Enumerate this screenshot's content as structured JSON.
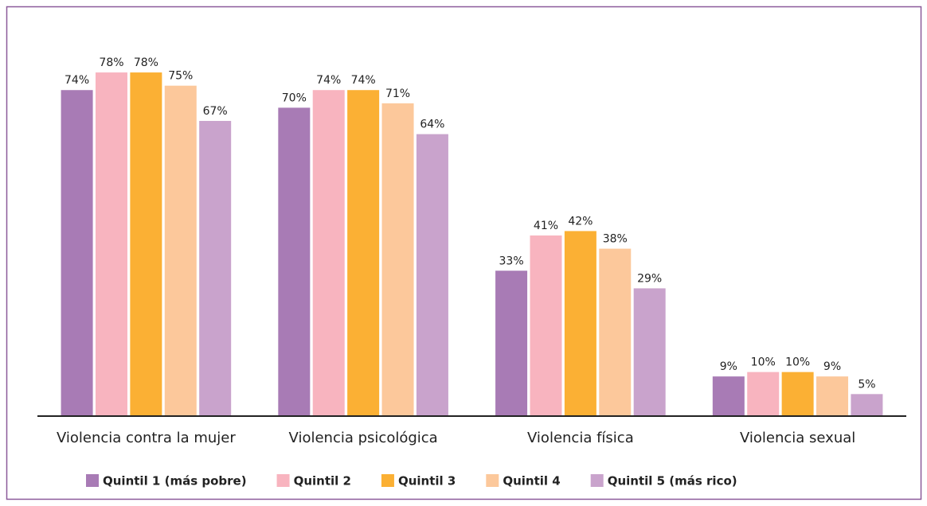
{
  "chart_data": {
    "type": "bar",
    "categories": [
      "Violencia contra la mujer",
      "Violencia psicológica",
      "Violencia física",
      "Violencia sexual"
    ],
    "series": [
      {
        "name": "Quintil 1 (más pobre)",
        "color": "#a87bb5",
        "values": [
          74,
          70,
          33,
          9
        ],
        "value_labels": [
          "74%",
          "70%",
          "33%",
          "9%"
        ]
      },
      {
        "name": "Quintil 2",
        "color": "#f8b4bf",
        "values": [
          78,
          74,
          41,
          10
        ],
        "value_labels": [
          "78%",
          "74%",
          "41%",
          "10%"
        ]
      },
      {
        "name": "Quintil 3",
        "color": "#fbb034",
        "values": [
          78,
          74,
          42,
          10
        ],
        "value_labels": [
          "78%",
          "74%",
          "42%",
          "10%"
        ]
      },
      {
        "name": "Quintil 4",
        "color": "#fcc89b",
        "values": [
          75,
          71,
          38,
          9
        ],
        "value_labels": [
          "75%",
          "71%",
          "38%",
          "9%"
        ]
      },
      {
        "name": "Quintil 5 (más rico)",
        "color": "#c9a3cc",
        "values": [
          67,
          64,
          29,
          5
        ],
        "value_labels": [
          "67%",
          "64%",
          "29%",
          "5%"
        ]
      }
    ],
    "ylim": [
      0,
      80
    ]
  }
}
